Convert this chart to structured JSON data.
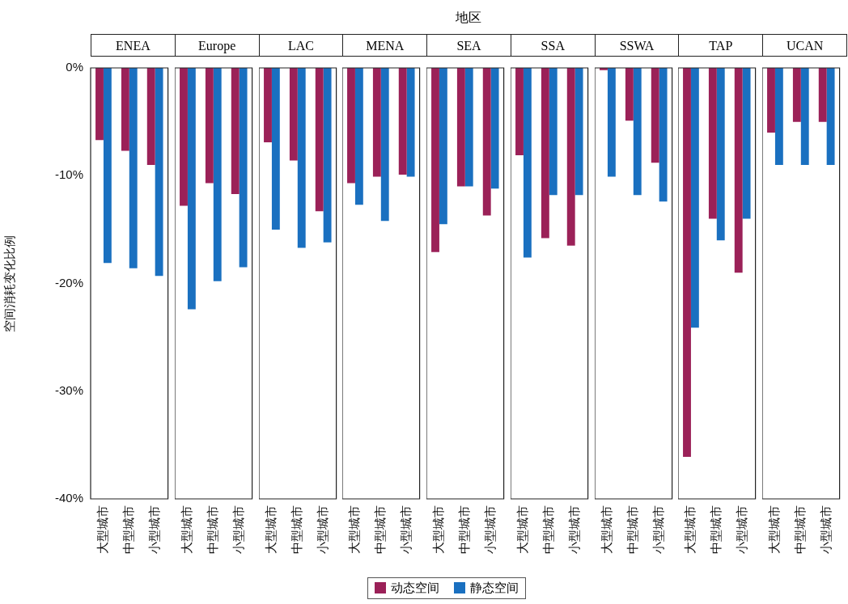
{
  "chart_data": [
    {
      "type": "bar",
      "title": "ENEA",
      "annotations": [
        "地区"
      ],
      "ylabel": "空间消耗变化比例",
      "legend": "bottom",
      "categories": [
        "大型城市",
        "中型城市",
        "小型城市"
      ],
      "ylim": [
        -40,
        0
      ],
      "yticks": [
        {
          "value": 0,
          "label": "0%"
        },
        {
          "value": -10,
          "label": "-10%"
        },
        {
          "value": -20,
          "label": "-20%"
        },
        {
          "value": -30,
          "label": "-30%"
        },
        {
          "value": -40,
          "label": "-40%"
        }
      ],
      "series": [
        {
          "name": "动态空间",
          "color": "#9b2158",
          "values": [
            -6.7,
            -7.7,
            -9.0
          ]
        },
        {
          "name": "静态空间",
          "color": "#1a70c0",
          "values": [
            -18.1,
            -18.6,
            -19.3
          ]
        }
      ]
    },
    {
      "type": "bar",
      "title": "Europe",
      "categories": [
        "大型城市",
        "中型城市",
        "小型城市"
      ],
      "ylim": [
        -40,
        0
      ],
      "tick_labels": "x",
      "series": [
        {
          "color": "#9b2158",
          "values": [
            -12.8,
            -10.7,
            -11.7
          ]
        },
        {
          "color": "#1a70c0",
          "values": [
            -22.4,
            -19.8,
            -18.5
          ]
        }
      ]
    },
    {
      "type": "bar",
      "title": "LAC",
      "categories": [
        "大型城市",
        "中型城市",
        "小型城市"
      ],
      "ylim": [
        -40,
        0
      ],
      "tick_labels": "x",
      "series": [
        {
          "color": "#9b2158",
          "values": [
            -6.9,
            -8.6,
            -13.3
          ]
        },
        {
          "color": "#1a70c0",
          "values": [
            -15.0,
            -16.7,
            -16.2
          ]
        }
      ]
    },
    {
      "type": "bar",
      "title": "MENA",
      "categories": [
        "大型城市",
        "中型城市",
        "小型城市"
      ],
      "ylim": [
        -40,
        0
      ],
      "tick_labels": "x",
      "series": [
        {
          "color": "#9b2158",
          "values": [
            -10.7,
            -10.1,
            -9.9
          ]
        },
        {
          "color": "#1a70c0",
          "values": [
            -12.7,
            -14.2,
            -10.1
          ]
        }
      ]
    },
    {
      "type": "bar",
      "title": "SEA",
      "categories": [
        "大型城市",
        "中型城市",
        "小型城市"
      ],
      "ylim": [
        -40,
        0
      ],
      "tick_labels": "x",
      "series": [
        {
          "color": "#9b2158",
          "values": [
            -17.1,
            -11.0,
            -13.7
          ]
        },
        {
          "color": "#1a70c0",
          "values": [
            -14.5,
            -11.0,
            -11.2
          ]
        }
      ]
    },
    {
      "type": "bar",
      "title": "SSA",
      "categories": [
        "大型城市",
        "中型城市",
        "小型城市"
      ],
      "ylim": [
        -40,
        0
      ],
      "tick_labels": "x",
      "series": [
        {
          "color": "#9b2158",
          "values": [
            -8.1,
            -15.8,
            -16.5
          ]
        },
        {
          "color": "#1a70c0",
          "values": [
            -17.6,
            -11.8,
            -11.8
          ]
        }
      ]
    },
    {
      "type": "bar",
      "title": "SSWA",
      "categories": [
        "大型城市",
        "中型城市",
        "小型城市"
      ],
      "ylim": [
        -40,
        0
      ],
      "tick_labels": "x",
      "series": [
        {
          "color": "#9b2158",
          "values": [
            -0.2,
            -4.9,
            -8.8
          ]
        },
        {
          "color": "#1a70c0",
          "values": [
            -10.1,
            -11.8,
            -12.4
          ]
        }
      ]
    },
    {
      "type": "bar",
      "title": "TAP",
      "categories": [
        "大型城市",
        "中型城市",
        "小型城市"
      ],
      "ylim": [
        -40,
        0
      ],
      "tick_labels": "x",
      "series": [
        {
          "color": "#9b2158",
          "values": [
            -36.1,
            -14.0,
            -19.0
          ]
        },
        {
          "color": "#1a70c0",
          "values": [
            -24.1,
            -16.0,
            -14.0
          ]
        }
      ]
    },
    {
      "type": "bar",
      "title": "UCAN",
      "categories": [
        "大型城市",
        "中型城市",
        "小型城市"
      ],
      "ylim": [
        -40,
        0
      ],
      "tick_labels": "x",
      "series": [
        {
          "color": "#9b2158",
          "values": [
            -6.0,
            -5.0,
            -5.0
          ]
        },
        {
          "color": "#1a70c0",
          "values": [
            -9.0,
            -9.0,
            -9.0
          ]
        }
      ]
    }
  ]
}
